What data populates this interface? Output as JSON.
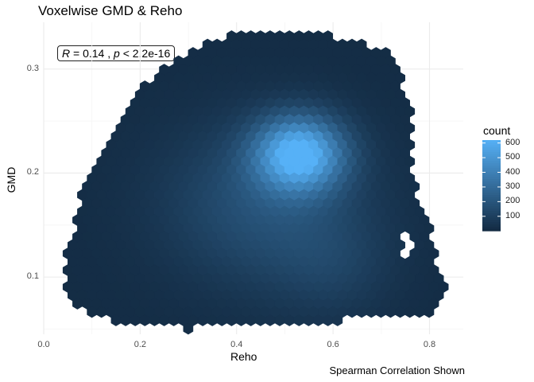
{
  "chart_data": {
    "type": "heatmap",
    "subtype": "hexbin",
    "title": "Voxelwise GMD & Reho",
    "xlabel": "Reho",
    "ylabel": "GMD",
    "caption": "Spearman Correlation Shown",
    "annotation": {
      "r_label": "R",
      "r_value": "= 0.14 ,",
      "p_label": "p",
      "p_value": "< 2.2e-16"
    },
    "xlim": [
      0.0,
      0.87
    ],
    "ylim": [
      0.045,
      0.345
    ],
    "x_ticks": [
      "0.0",
      "0.2",
      "0.4",
      "0.6",
      "0.8"
    ],
    "y_ticks": [
      "0.1",
      "0.2",
      "0.3"
    ],
    "x_tick_values": [
      0.0,
      0.2,
      0.4,
      0.6,
      0.8
    ],
    "y_tick_values": [
      0.1,
      0.2,
      0.3
    ],
    "grid": true,
    "legend": {
      "title": "count",
      "placement": "right",
      "ticks": [
        "100",
        "200",
        "300",
        "400",
        "500",
        "600"
      ],
      "tick_values": [
        100,
        200,
        300,
        400,
        500,
        600
      ],
      "range": [
        1,
        620
      ],
      "color_low": "#132b43",
      "color_high": "#56b1f7"
    },
    "peak": {
      "x": 0.53,
      "y": 0.218,
      "count": 600
    },
    "colors": {
      "background": "#ffffff",
      "grid_major": "#ebebeb",
      "grid_minor": "#f5f5f5"
    }
  }
}
